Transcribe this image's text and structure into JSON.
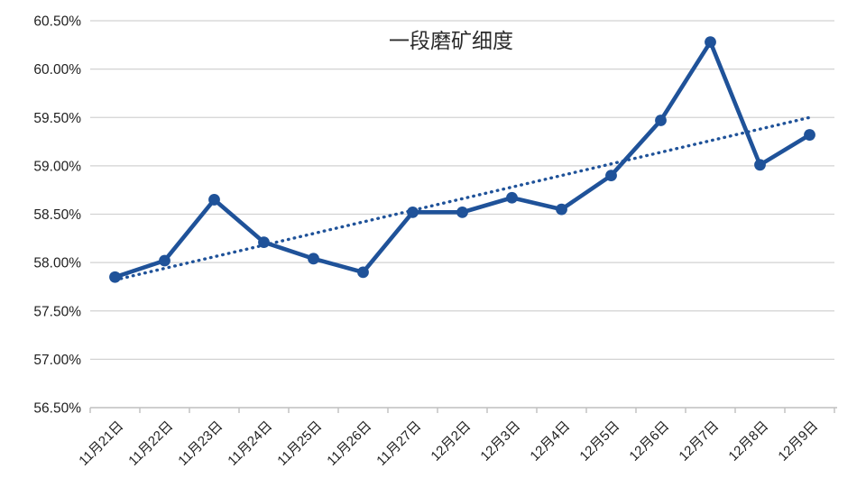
{
  "chart_data": {
    "type": "line",
    "title": "一段磨矿细度",
    "categories": [
      "11月21日",
      "11月22日",
      "11月23日",
      "11月24日",
      "11月25日",
      "11月26日",
      "11月27日",
      "12月2日",
      "12月3日",
      "12月4日",
      "12月5日",
      "12月6日",
      "12月7日",
      "12月8日",
      "12月9日"
    ],
    "series": [
      {
        "name": "一段磨矿细度",
        "values": [
          57.85,
          58.02,
          58.65,
          58.21,
          58.04,
          57.9,
          58.52,
          58.52,
          58.67,
          58.55,
          58.9,
          59.47,
          60.28,
          59.01,
          59.32
        ],
        "color": "#1F5299",
        "marker": "circle"
      }
    ],
    "trendline": {
      "name": "linear-trend",
      "start_value": 57.82,
      "end_value": 59.5,
      "style": "dotted",
      "color": "#1F5299"
    },
    "xlabel": "",
    "ylabel": "",
    "ylim": [
      56.5,
      60.5
    ],
    "y_tick_step": 0.5,
    "y_ticks": [
      {
        "value": 60.5,
        "label": "60.50%"
      },
      {
        "value": 60.0,
        "label": "60.00%"
      },
      {
        "value": 59.5,
        "label": "59.50%"
      },
      {
        "value": 59.0,
        "label": "59.00%"
      },
      {
        "value": 58.5,
        "label": "58.50%"
      },
      {
        "value": 58.0,
        "label": "58.00%"
      },
      {
        "value": 57.5,
        "label": "57.50%"
      },
      {
        "value": 57.0,
        "label": "57.00%"
      },
      {
        "value": 56.5,
        "label": "56.50%"
      }
    ],
    "grid": "horizontal",
    "legend_position": "none",
    "colors": {
      "grid_color": "#D2D2D2",
      "axis_color": "#BFBFBF",
      "label_color": "#1F1F1F",
      "title_color": "#2B2B2B"
    }
  }
}
